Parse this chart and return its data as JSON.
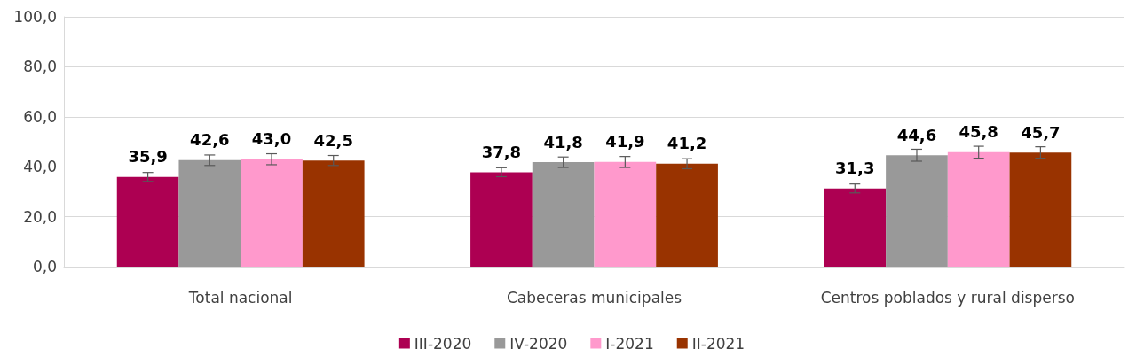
{
  "chart_data": {
    "type": "bar",
    "categories": [
      "Total nacional",
      "Cabeceras municipales",
      "Centros poblados y rural disperso"
    ],
    "series": [
      {
        "name": "III-2020",
        "color": "#ad0052",
        "values": [
          35.9,
          37.8,
          31.3
        ],
        "errors": [
          1.8,
          1.8,
          1.8
        ],
        "value_labels": [
          "35,9",
          "37,8",
          "31,3"
        ]
      },
      {
        "name": "IV-2020",
        "color": "#999999",
        "values": [
          42.6,
          41.8,
          44.6
        ],
        "errors": [
          2.1,
          2.1,
          2.4
        ],
        "value_labels": [
          "42,6",
          "41,8",
          "44,6"
        ]
      },
      {
        "name": "I-2021",
        "color": "#ff99cc",
        "values": [
          43.0,
          41.9,
          45.8
        ],
        "errors": [
          2.2,
          2.2,
          2.4
        ],
        "value_labels": [
          "43,0",
          "41,9",
          "45,8"
        ]
      },
      {
        "name": "II-2021",
        "color": "#993300",
        "values": [
          42.5,
          41.2,
          45.7
        ],
        "errors": [
          2.0,
          2.0,
          2.3
        ],
        "value_labels": [
          "42,5",
          "41,2",
          "45,7"
        ]
      }
    ],
    "ylim": [
      0,
      100
    ],
    "yticks": [
      {
        "value": 0,
        "label": "0,0"
      },
      {
        "value": 20,
        "label": "20,0"
      },
      {
        "value": 40,
        "label": "40,0"
      },
      {
        "value": 60,
        "label": "60,0"
      },
      {
        "value": 80,
        "label": "80,0"
      },
      {
        "value": 100,
        "label": "100,0"
      }
    ],
    "grid": "y",
    "legend": "bottom"
  }
}
